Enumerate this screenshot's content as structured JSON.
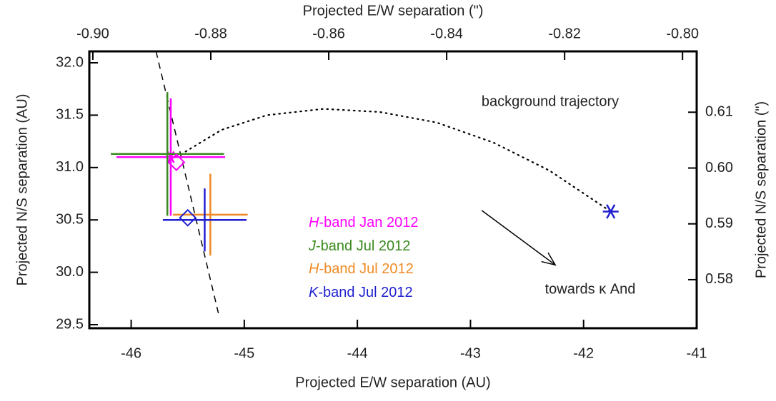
{
  "chart_data": {
    "type": "scatter",
    "xlabel": "Projected E/W separation (AU)",
    "x2label": "Projected E/W separation (\")",
    "ylabel": "Projected N/S separation (AU)",
    "y2label": "Projected N/S separation (\")",
    "xlim": [
      -46.37,
      -41
    ],
    "xticks": [
      -46,
      -45,
      -44,
      -43,
      -42,
      -41
    ],
    "x2lim": [
      -0.9006,
      -0.7976
    ],
    "x2ticks": [
      {
        "value": -0.9,
        "label": "-0.90"
      },
      -0.88,
      -0.86,
      -0.84,
      -0.82,
      {
        "value": -0.8,
        "label": "-0.80"
      }
    ],
    "ylim": [
      29.466,
      32.109
    ],
    "yticks": [
      29.5,
      {
        "value": 30,
        "label": "30.0"
      },
      30.5,
      {
        "value": 31,
        "label": "31.0"
      },
      31.5,
      {
        "value": 32,
        "label": "32.0"
      }
    ],
    "y2lim": [
      0.5713,
      0.6209
    ],
    "y2ticks": [
      0.58,
      0.59,
      {
        "value": 0.6,
        "label": "0.60"
      },
      0.61
    ],
    "series": [
      {
        "name": "H-band Jan 2012",
        "color": "#ff00ff",
        "x": [
          -45.65
        ],
        "values": [
          31.1
        ],
        "xerr": [
          0.48
        ],
        "yerr": [
          0.56
        ],
        "marker": "asterisk"
      },
      {
        "name": "J-band Jul 2012",
        "color": "#3a8a1e",
        "x": [
          -45.68
        ],
        "values": [
          31.13
        ],
        "xerr": [
          0.5
        ],
        "yerr": [
          0.59
        ]
      },
      {
        "name": "H-band Jul 2012",
        "color": "#f08a24",
        "x": [
          -45.3
        ],
        "values": [
          30.55
        ],
        "xerr": [
          0.33
        ],
        "yerr": [
          0.39
        ]
      },
      {
        "name": "K-band Jul 2012",
        "color": "#1f1fd0",
        "x": [
          -45.35
        ],
        "values": [
          30.5
        ],
        "xerr": [
          0.37
        ],
        "yerr": [
          0.3
        ]
      }
    ],
    "diamonds": [
      {
        "x": -45.6,
        "y": 31.05,
        "color": "#ff00ff"
      },
      {
        "x": -45.5,
        "y": 30.52,
        "color": "#1f1fd0"
      }
    ],
    "star": {
      "x": -41.76,
      "y": 30.58,
      "color": "#1f1fd0"
    },
    "trajectory": {
      "x": [
        -45.6,
        -45.2,
        -44.8,
        -44.3,
        -43.8,
        -43.3,
        -42.8,
        -42.3,
        -41.76
      ],
      "y": [
        31.1,
        31.36,
        31.5,
        31.56,
        31.53,
        31.43,
        31.24,
        30.97,
        30.58
      ]
    },
    "dashed_line": {
      "x": [
        -45.78,
        -45.22
      ],
      "y": [
        32.109,
        29.57
      ]
    },
    "arrow": {
      "x": [
        -42.9,
        -42.25
      ],
      "y": [
        30.59,
        30.07
      ]
    },
    "annotations": [
      "background trajectory",
      "towards κ And"
    ]
  }
}
